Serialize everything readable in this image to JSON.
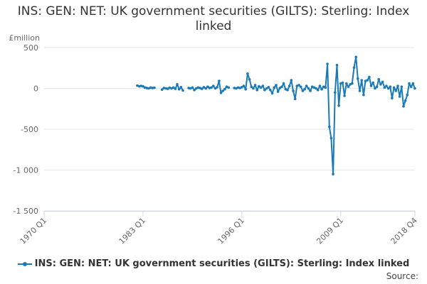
{
  "title": "INS: GEN: NET: UK government securities (GILTS): Sterling: Index linked",
  "source_label": "Source:",
  "colors": {
    "series": "#1a7ab8",
    "grid": "#e6e6e6",
    "axis": "#ccd6eb",
    "text": "#666666"
  },
  "chart_data": {
    "type": "line",
    "title": "INS: GEN: NET: UK government securities (GILTS): Sterling: Index linked",
    "ylabel": "£million",
    "xlabel": "",
    "ylim": [
      -1500,
      500
    ],
    "yticks": [
      500,
      0,
      -500,
      -1000,
      -1500
    ],
    "ytick_labels": [
      "500",
      "0",
      "-500",
      "-1 000",
      "-1 500"
    ],
    "xlim": [
      "1970 Q1",
      "2018 Q4"
    ],
    "xticks": [
      "1970 Q1",
      "1983 Q1",
      "1996 Q1",
      "2009 Q1",
      "2018 Q4"
    ],
    "grid": true,
    "legend_position": "bottom",
    "series": [
      {
        "name": "INS: GEN: NET: UK government securities (GILTS): Sterling: Index linked",
        "segments": [
          [
            [
              "1982 Q2",
              35
            ],
            [
              "1982 Q3",
              25
            ],
            [
              "1982 Q4",
              30
            ],
            [
              "1983 Q1",
              25
            ],
            [
              "1983 Q2",
              10
            ],
            [
              "1983 Q3",
              5
            ],
            [
              "1983 Q4",
              0
            ],
            [
              "1984 Q1",
              10
            ],
            [
              "1984 Q2",
              5
            ],
            [
              "1984 Q3",
              8
            ]
          ],
          [
            [
              "1985 Q3",
              -15
            ],
            [
              "1985 Q4",
              5
            ],
            [
              "1986 Q1",
              0
            ],
            [
              "1986 Q2",
              -5
            ],
            [
              "1986 Q3",
              8
            ],
            [
              "1986 Q4",
              0
            ],
            [
              "1987 Q1",
              10
            ],
            [
              "1987 Q2",
              -5
            ],
            [
              "1987 Q3",
              50
            ],
            [
              "1987 Q4",
              -10
            ],
            [
              "1988 Q1",
              15
            ],
            [
              "1988 Q2",
              -25
            ]
          ],
          [
            [
              "1989 Q1",
              5
            ],
            [
              "1989 Q2",
              0
            ],
            [
              "1989 Q3",
              10
            ],
            [
              "1989 Q4",
              -20
            ],
            [
              "1990 Q1",
              0
            ],
            [
              "1990 Q2",
              10
            ],
            [
              "1990 Q3",
              5
            ],
            [
              "1990 Q4",
              -5
            ],
            [
              "1991 Q1",
              15
            ],
            [
              "1991 Q2",
              0
            ],
            [
              "1991 Q3",
              20
            ],
            [
              "1991 Q4",
              5
            ],
            [
              "1992 Q1",
              10
            ],
            [
              "1992 Q2",
              30
            ],
            [
              "1992 Q3",
              0
            ],
            [
              "1992 Q4",
              15
            ],
            [
              "1993 Q1",
              90
            ],
            [
              "1993 Q2",
              -55
            ],
            [
              "1993 Q3",
              -30
            ],
            [
              "1993 Q4",
              -10
            ],
            [
              "1994 Q1",
              20
            ],
            [
              "1994 Q2",
              10
            ]
          ],
          [
            [
              "1995 Q1",
              5
            ],
            [
              "1995 Q2",
              0
            ],
            [
              "1995 Q3",
              10
            ],
            [
              "1995 Q4",
              5
            ],
            [
              "1996 Q1",
              15
            ],
            [
              "1996 Q2",
              30
            ],
            [
              "1996 Q3",
              -10
            ],
            [
              "1996 Q4",
              180
            ],
            [
              "1997 Q1",
              110
            ],
            [
              "1997 Q2",
              20
            ],
            [
              "1997 Q3",
              0
            ],
            [
              "1997 Q4",
              40
            ],
            [
              "1998 Q1",
              -20
            ],
            [
              "1998 Q2",
              25
            ],
            [
              "1998 Q3",
              10
            ],
            [
              "1998 Q4",
              30
            ],
            [
              "1999 Q1",
              -20
            ],
            [
              "1999 Q2",
              0
            ],
            [
              "1999 Q3",
              15
            ],
            [
              "1999 Q4",
              -20
            ],
            [
              "2000 Q1",
              -60
            ],
            [
              "2000 Q2",
              10
            ],
            [
              "2000 Q3",
              40
            ],
            [
              "2000 Q4",
              -40
            ],
            [
              "2001 Q1",
              5
            ],
            [
              "2001 Q2",
              20
            ],
            [
              "2001 Q3",
              60
            ],
            [
              "2001 Q4",
              -10
            ],
            [
              "2002 Q1",
              -20
            ],
            [
              "2002 Q2",
              30
            ],
            [
              "2002 Q3",
              100
            ],
            [
              "2002 Q4",
              -30
            ],
            [
              "2003 Q1",
              -130
            ],
            [
              "2003 Q2",
              30
            ],
            [
              "2003 Q3",
              40
            ],
            [
              "2003 Q4",
              20
            ],
            [
              "2004 Q1",
              -30
            ],
            [
              "2004 Q2",
              -10
            ],
            [
              "2004 Q3",
              30
            ],
            [
              "2004 Q4",
              0
            ],
            [
              "2005 Q1",
              -30
            ],
            [
              "2005 Q2",
              20
            ],
            [
              "2005 Q3",
              10
            ],
            [
              "2005 Q4",
              0
            ],
            [
              "2006 Q1",
              -20
            ],
            [
              "2006 Q2",
              30
            ],
            [
              "2006 Q3",
              -10
            ],
            [
              "2006 Q4",
              20
            ],
            [
              "2007 Q1",
              10
            ],
            [
              "2007 Q2",
              300
            ],
            [
              "2007 Q3",
              -470
            ],
            [
              "2007 Q4",
              -610
            ],
            [
              "2008 Q1",
              -1050
            ],
            [
              "2008 Q2",
              -50
            ],
            [
              "2008 Q3",
              285
            ],
            [
              "2008 Q4",
              -210
            ],
            [
              "2009 Q1",
              60
            ],
            [
              "2009 Q2",
              70
            ],
            [
              "2009 Q3",
              -90
            ],
            [
              "2009 Q4",
              60
            ],
            [
              "2010 Q1",
              20
            ],
            [
              "2010 Q2",
              50
            ],
            [
              "2010 Q3",
              60
            ],
            [
              "2010 Q4",
              255
            ],
            [
              "2011 Q1",
              385
            ],
            [
              "2011 Q2",
              120
            ],
            [
              "2011 Q3",
              -30
            ],
            [
              "2011 Q4",
              100
            ],
            [
              "2012 Q1",
              -80
            ],
            [
              "2012 Q2",
              90
            ],
            [
              "2012 Q3",
              100
            ],
            [
              "2012 Q4",
              140
            ],
            [
              "2013 Q1",
              30
            ],
            [
              "2013 Q2",
              70
            ],
            [
              "2013 Q3",
              0
            ],
            [
              "2013 Q4",
              20
            ],
            [
              "2014 Q1",
              110
            ],
            [
              "2014 Q2",
              50
            ],
            [
              "2014 Q3",
              80
            ],
            [
              "2014 Q4",
              10
            ],
            [
              "2015 Q1",
              30
            ],
            [
              "2015 Q2",
              0
            ],
            [
              "2015 Q3",
              20
            ],
            [
              "2015 Q4",
              -120
            ],
            [
              "2016 Q1",
              10
            ],
            [
              "2016 Q2",
              -30
            ],
            [
              "2016 Q3",
              30
            ],
            [
              "2016 Q4",
              -100
            ],
            [
              "2017 Q1",
              20
            ],
            [
              "2017 Q2",
              -220
            ],
            [
              "2017 Q3",
              -150
            ],
            [
              "2017 Q4",
              -80
            ],
            [
              "2018 Q1",
              60
            ],
            [
              "2018 Q2",
              20
            ],
            [
              "2018 Q3",
              60
            ],
            [
              "2018 Q4",
              0
            ]
          ]
        ]
      }
    ]
  }
}
